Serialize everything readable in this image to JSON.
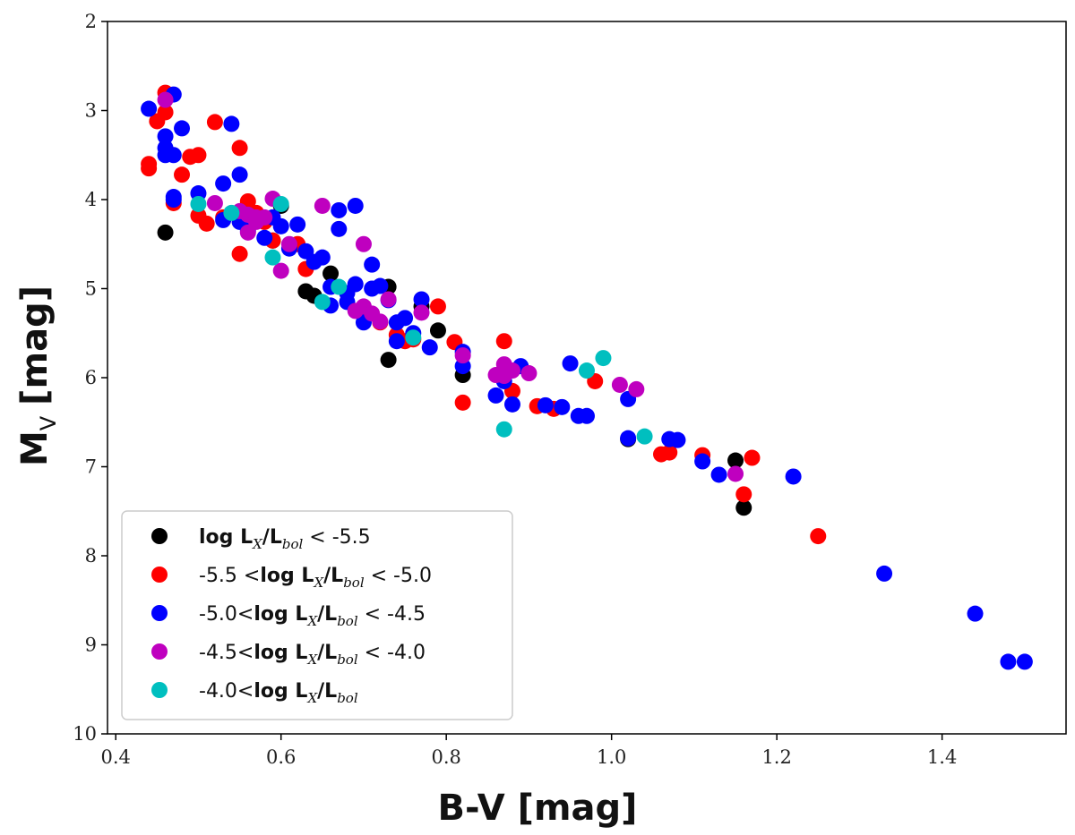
{
  "chart_data": {
    "type": "scatter",
    "xlabel": "B-V [mag]",
    "ylabel_main": "M",
    "ylabel_sub": "V",
    "ylabel_unit": "[mag]",
    "xlim": [
      0.39,
      1.55
    ],
    "ylim": [
      2,
      10
    ],
    "y_inverted": true,
    "grid": false,
    "legend_position": "bottom-left",
    "x_ticks": [
      {
        "value": 0.4,
        "label": "0.4"
      },
      {
        "value": 0.6,
        "label": "0.6"
      },
      {
        "value": 0.8,
        "label": "0.8"
      },
      {
        "value": 1.0,
        "label": "1.0"
      },
      {
        "value": 1.2,
        "label": "1.2"
      },
      {
        "value": 1.4,
        "label": "1.4"
      }
    ],
    "y_ticks": [
      {
        "value": 2,
        "label": "2"
      },
      {
        "value": 3,
        "label": "3"
      },
      {
        "value": 4,
        "label": "4"
      },
      {
        "value": 5,
        "label": "5"
      },
      {
        "value": 6,
        "label": "6"
      },
      {
        "value": 7,
        "label": "7"
      },
      {
        "value": 8,
        "label": "8"
      },
      {
        "value": 9,
        "label": "9"
      },
      {
        "value": 10,
        "label": "10"
      }
    ],
    "series": [
      {
        "name": "log LX/Lbol < -5.5",
        "color": "#000000",
        "legend_parts": [
          {
            "text": "log L",
            "style": "bold"
          },
          {
            "text": "X",
            "style": "sub"
          },
          {
            "text": "/L",
            "style": "bold"
          },
          {
            "text": "bol",
            "style": "sub"
          },
          {
            "text": " < -5.5",
            "style": "normal"
          }
        ],
        "points": [
          [
            0.46,
            4.37
          ],
          [
            0.59,
            4.46
          ],
          [
            0.6,
            4.07
          ],
          [
            0.63,
            5.03
          ],
          [
            0.64,
            5.08
          ],
          [
            0.66,
            4.83
          ],
          [
            0.73,
            5.8
          ],
          [
            0.73,
            4.98
          ],
          [
            0.77,
            5.2
          ],
          [
            0.79,
            5.47
          ],
          [
            0.82,
            5.97
          ],
          [
            1.02,
            6.69
          ],
          [
            1.15,
            6.93
          ],
          [
            1.16,
            7.46
          ]
        ]
      },
      {
        "name": "-5.5 <log LX/Lbol < -5.0",
        "color": "#ff0000",
        "legend_parts": [
          {
            "text": "-5.5 <",
            "style": "normal"
          },
          {
            "text": "log L",
            "style": "bold"
          },
          {
            "text": "X",
            "style": "sub"
          },
          {
            "text": "/L",
            "style": "bold"
          },
          {
            "text": "bol",
            "style": "sub"
          },
          {
            "text": " < -5.0",
            "style": "normal"
          }
        ],
        "points": [
          [
            0.44,
            3.6
          ],
          [
            0.44,
            3.65
          ],
          [
            0.45,
            3.12
          ],
          [
            0.46,
            2.8
          ],
          [
            0.46,
            3.02
          ],
          [
            0.47,
            4.04
          ],
          [
            0.48,
            3.72
          ],
          [
            0.49,
            3.52
          ],
          [
            0.5,
            3.5
          ],
          [
            0.5,
            4.18
          ],
          [
            0.51,
            4.27
          ],
          [
            0.52,
            3.13
          ],
          [
            0.53,
            4.2
          ],
          [
            0.55,
            3.42
          ],
          [
            0.55,
            4.61
          ],
          [
            0.56,
            4.02
          ],
          [
            0.57,
            4.15
          ],
          [
            0.58,
            4.25
          ],
          [
            0.59,
            4.46
          ],
          [
            0.62,
            4.5
          ],
          [
            0.63,
            4.78
          ],
          [
            0.7,
            5.3
          ],
          [
            0.72,
            5.38
          ],
          [
            0.74,
            5.52
          ],
          [
            0.75,
            5.59
          ],
          [
            0.76,
            5.57
          ],
          [
            0.79,
            5.2
          ],
          [
            0.81,
            5.6
          ],
          [
            0.82,
            6.28
          ],
          [
            0.87,
            5.59
          ],
          [
            0.88,
            6.15
          ],
          [
            0.91,
            6.32
          ],
          [
            0.93,
            6.35
          ],
          [
            0.98,
            6.04
          ],
          [
            1.06,
            6.86
          ],
          [
            1.07,
            6.84
          ],
          [
            1.11,
            6.87
          ],
          [
            1.16,
            7.31
          ],
          [
            1.17,
            6.9
          ],
          [
            1.25,
            7.78
          ]
        ]
      },
      {
        "name": "-5.0<log LX/Lbol < -4.5",
        "color": "#0000ff",
        "legend_parts": [
          {
            "text": "-5.0<",
            "style": "normal"
          },
          {
            "text": "log L",
            "style": "bold"
          },
          {
            "text": "X",
            "style": "sub"
          },
          {
            "text": "/L",
            "style": "bold"
          },
          {
            "text": "bol",
            "style": "sub"
          },
          {
            "text": " < -4.5",
            "style": "normal"
          }
        ],
        "points": [
          [
            0.44,
            2.98
          ],
          [
            0.46,
            3.29
          ],
          [
            0.46,
            3.42
          ],
          [
            0.46,
            3.5
          ],
          [
            0.47,
            2.82
          ],
          [
            0.47,
            3.5
          ],
          [
            0.47,
            3.97
          ],
          [
            0.47,
            4.0
          ],
          [
            0.48,
            3.2
          ],
          [
            0.5,
            3.93
          ],
          [
            0.53,
            3.82
          ],
          [
            0.53,
            4.23
          ],
          [
            0.54,
            3.15
          ],
          [
            0.55,
            3.72
          ],
          [
            0.55,
            4.25
          ],
          [
            0.56,
            4.35
          ],
          [
            0.58,
            4.43
          ],
          [
            0.59,
            4.2
          ],
          [
            0.6,
            4.3
          ],
          [
            0.61,
            4.55
          ],
          [
            0.62,
            4.28
          ],
          [
            0.63,
            4.58
          ],
          [
            0.64,
            4.7
          ],
          [
            0.65,
            4.65
          ],
          [
            0.66,
            4.98
          ],
          [
            0.66,
            5.19
          ],
          [
            0.67,
            4.12
          ],
          [
            0.67,
            4.33
          ],
          [
            0.68,
            5.05
          ],
          [
            0.68,
            5.15
          ],
          [
            0.69,
            4.07
          ],
          [
            0.69,
            4.95
          ],
          [
            0.7,
            5.38
          ],
          [
            0.71,
            4.73
          ],
          [
            0.71,
            5.0
          ],
          [
            0.72,
            4.97
          ],
          [
            0.73,
            5.13
          ],
          [
            0.74,
            5.59
          ],
          [
            0.74,
            5.38
          ],
          [
            0.75,
            5.33
          ],
          [
            0.76,
            5.5
          ],
          [
            0.77,
            5.12
          ],
          [
            0.78,
            5.66
          ],
          [
            0.82,
            5.87
          ],
          [
            0.82,
            5.71
          ],
          [
            0.86,
            6.2
          ],
          [
            0.87,
            6.04
          ],
          [
            0.88,
            6.3
          ],
          [
            0.89,
            5.87
          ],
          [
            0.92,
            6.31
          ],
          [
            0.94,
            6.33
          ],
          [
            0.95,
            5.84
          ],
          [
            0.96,
            6.43
          ],
          [
            0.97,
            6.43
          ],
          [
            1.02,
            6.24
          ],
          [
            1.02,
            6.68
          ],
          [
            1.07,
            6.69
          ],
          [
            1.08,
            6.7
          ],
          [
            1.11,
            6.94
          ],
          [
            1.13,
            7.09
          ],
          [
            1.22,
            7.11
          ],
          [
            1.33,
            8.2
          ],
          [
            1.44,
            8.65
          ],
          [
            1.48,
            9.19
          ],
          [
            1.5,
            9.19
          ]
        ]
      },
      {
        "name": "-4.5<log LX/Lbol < -4.0",
        "color": "#bf00bf",
        "legend_parts": [
          {
            "text": "-4.5<",
            "style": "normal"
          },
          {
            "text": "log L",
            "style": "bold"
          },
          {
            "text": "X",
            "style": "sub"
          },
          {
            "text": "/L",
            "style": "bold"
          },
          {
            "text": "bol",
            "style": "sub"
          },
          {
            "text": " < -4.0",
            "style": "normal"
          }
        ],
        "points": [
          [
            0.46,
            2.88
          ],
          [
            0.52,
            4.04
          ],
          [
            0.55,
            4.13
          ],
          [
            0.56,
            4.17
          ],
          [
            0.56,
            4.37
          ],
          [
            0.57,
            4.2
          ],
          [
            0.57,
            4.25
          ],
          [
            0.58,
            4.2
          ],
          [
            0.59,
            3.99
          ],
          [
            0.6,
            4.8
          ],
          [
            0.61,
            4.5
          ],
          [
            0.65,
            4.07
          ],
          [
            0.69,
            5.25
          ],
          [
            0.7,
            4.5
          ],
          [
            0.7,
            5.2
          ],
          [
            0.71,
            5.28
          ],
          [
            0.72,
            5.37
          ],
          [
            0.73,
            5.12
          ],
          [
            0.77,
            5.27
          ],
          [
            0.82,
            5.75
          ],
          [
            0.86,
            5.97
          ],
          [
            0.87,
            5.85
          ],
          [
            0.87,
            5.98
          ],
          [
            0.88,
            5.92
          ],
          [
            0.9,
            5.95
          ],
          [
            1.01,
            6.08
          ],
          [
            1.03,
            6.13
          ],
          [
            1.15,
            7.08
          ]
        ]
      },
      {
        "name": "-4.0<log LX/Lbol",
        "color": "#00bfbf",
        "legend_parts": [
          {
            "text": "-4.0<",
            "style": "normal"
          },
          {
            "text": "log L",
            "style": "bold"
          },
          {
            "text": "X",
            "style": "sub"
          },
          {
            "text": "/L",
            "style": "bold"
          },
          {
            "text": "bol",
            "style": "sub"
          }
        ],
        "points": [
          [
            0.5,
            4.05
          ],
          [
            0.54,
            4.15
          ],
          [
            0.59,
            4.65
          ],
          [
            0.6,
            4.05
          ],
          [
            0.65,
            5.15
          ],
          [
            0.67,
            4.98
          ],
          [
            0.76,
            5.55
          ],
          [
            0.87,
            6.58
          ],
          [
            0.97,
            5.92
          ],
          [
            0.99,
            5.78
          ],
          [
            1.04,
            6.66
          ]
        ]
      }
    ]
  }
}
